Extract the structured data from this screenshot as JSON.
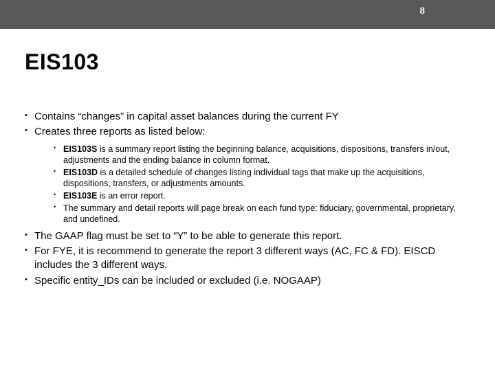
{
  "page_number": "8",
  "title": "EIS103",
  "top_bullets": [
    "Contains “changes” in capital asset balances during the current FY",
    "Creates three reports as listed below:"
  ],
  "sub_bullets": [
    {
      "bold": "EIS103S",
      "rest": " is a summary report listing the beginning balance, acquisitions, dispositions, transfers in/out, adjustments and the ending balance in column format."
    },
    {
      "bold": "EIS103D",
      "rest": " is a detailed schedule of changes listing individual tags that make up the acquisitions, dispositions, transfers, or adjustments amounts."
    },
    {
      "bold": "EIS103E",
      "rest": " is an error report."
    },
    {
      "bold": "",
      "rest": "The summary and detail reports will page break on each fund type: fiduciary, governmental, proprietary, and undefined."
    }
  ],
  "bottom_bullets": [
    "The GAAP flag must be set to “Y” to be able to generate this report.",
    "For FYE, it is recommend  to generate the report 3 different ways (AC, FC & FD).  EISCD includes the 3 different ways.",
    "Specific entity_IDs can be included or excluded (i.e. NOGAAP)"
  ],
  "colors": {
    "topbar": "#595959",
    "text": "#040404",
    "pagenum": "#ffffff",
    "background": "#ffffff"
  }
}
